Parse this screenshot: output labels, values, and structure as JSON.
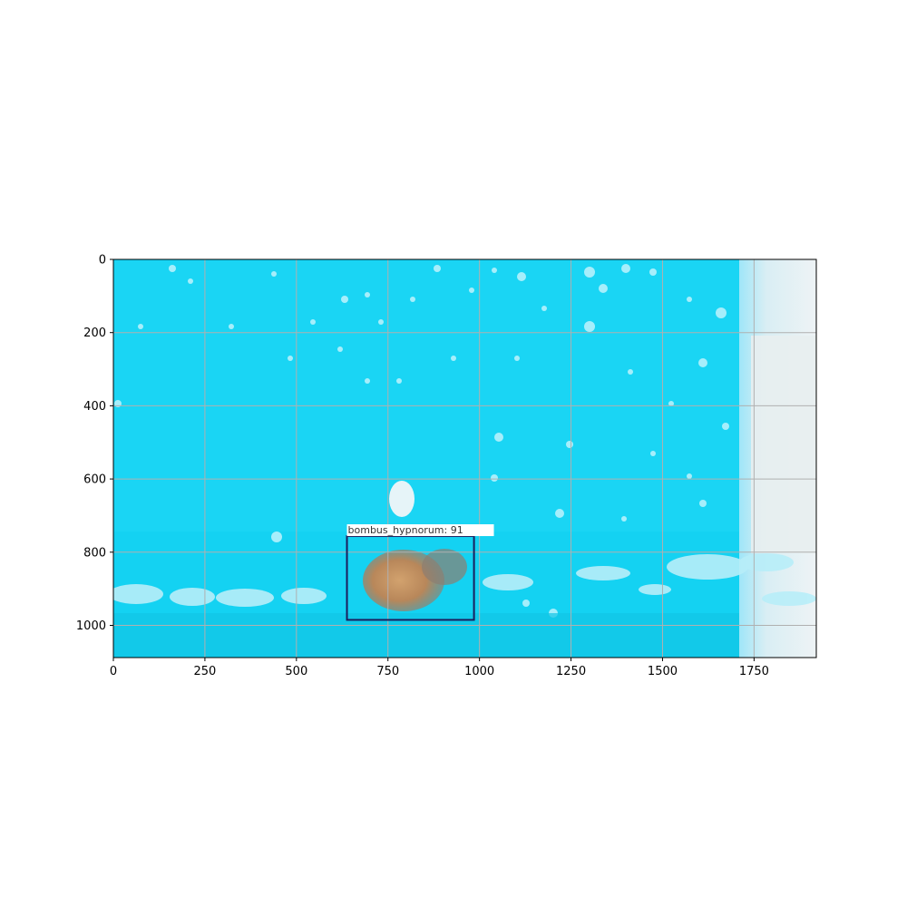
{
  "image": {
    "description_colors": {
      "water": "#12d4f4",
      "water_light": "#5fe3fa",
      "wall": "#dfe8ec",
      "bee": "#c09060"
    },
    "x_ticks": [
      0,
      250,
      500,
      750,
      1000,
      1250,
      1500,
      1750
    ],
    "y_ticks": [
      0,
      200,
      400,
      600,
      800,
      1000
    ],
    "x_range": [
      0,
      1920
    ],
    "y_range": [
      1088,
      0
    ],
    "grid": true,
    "detection": {
      "label": "bombus_hypnorum:",
      "score": "91",
      "box": {
        "x0": 638,
        "y0": 756,
        "x1": 985,
        "y1": 985
      },
      "box_color": "#1b1f5e"
    }
  }
}
